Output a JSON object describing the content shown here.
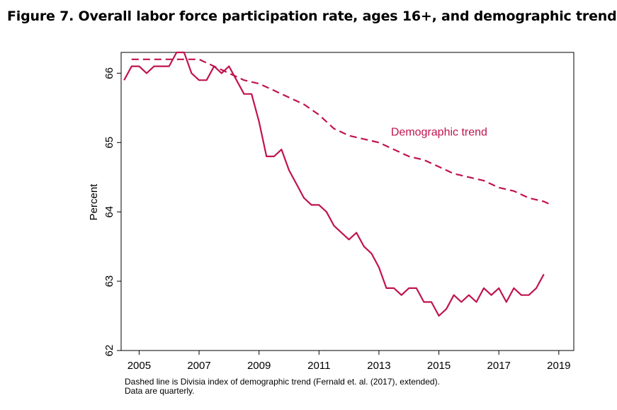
{
  "figure_title": "Figure 7. Overall labor force participation rate, ages 16+, and demographic trend",
  "notes": [
    "Dashed line is Divisia index of demographic trend (Fernald et. al. (2017), extended).",
    "Data are quarterly."
  ],
  "colors": {
    "series": "#c0134f",
    "axis": "#000000"
  },
  "chart_data": {
    "type": "line",
    "title": "Figure 7. Overall labor force participation rate, ages 16+, and demographic trend",
    "xlabel": "",
    "ylabel": "Percent",
    "xlim": [
      2004.4,
      2019.5
    ],
    "ylim": [
      62,
      66.3
    ],
    "xticks": [
      2005,
      2007,
      2009,
      2011,
      2013,
      2015,
      2017,
      2019
    ],
    "yticks": [
      62,
      63,
      64,
      65,
      66
    ],
    "annotation": {
      "text": "Demographic trend",
      "x": 2013.4,
      "y": 65.05
    },
    "series": [
      {
        "name": "Labor force participation rate",
        "style": "solid",
        "x": [
          2004.5,
          2004.75,
          2005,
          2005.25,
          2005.5,
          2005.75,
          2006,
          2006.25,
          2006.5,
          2006.75,
          2007,
          2007.25,
          2007.5,
          2007.75,
          2008,
          2008.25,
          2008.5,
          2008.75,
          2009,
          2009.25,
          2009.5,
          2009.75,
          2010,
          2010.25,
          2010.5,
          2010.75,
          2011,
          2011.25,
          2011.5,
          2011.75,
          2012,
          2012.25,
          2012.5,
          2012.75,
          2013,
          2013.25,
          2013.5,
          2013.75,
          2014,
          2014.25,
          2014.5,
          2014.75,
          2015,
          2015.25,
          2015.5,
          2015.75,
          2016,
          2016.25,
          2016.5,
          2016.75,
          2017,
          2017.25,
          2017.5,
          2017.75,
          2018,
          2018.25,
          2018.5
        ],
        "values": [
          65.9,
          66.1,
          66.1,
          66.0,
          66.1,
          66.1,
          66.1,
          66.3,
          66.3,
          66.0,
          65.9,
          65.9,
          66.1,
          66.0,
          66.1,
          65.9,
          65.7,
          65.7,
          65.3,
          64.8,
          64.8,
          64.9,
          64.6,
          64.4,
          64.2,
          64.1,
          64.1,
          64.0,
          63.8,
          63.7,
          63.6,
          63.7,
          63.5,
          63.4,
          63.2,
          62.9,
          62.9,
          62.8,
          62.9,
          62.9,
          62.7,
          62.7,
          62.5,
          62.6,
          62.8,
          62.7,
          62.8,
          62.7,
          62.9,
          62.8,
          62.9,
          62.7,
          62.9,
          62.8,
          62.8,
          62.9,
          63.1
        ]
      },
      {
        "name": "Demographic trend",
        "style": "dashed",
        "x": [
          2004.75,
          2005,
          2005.5,
          2006,
          2006.5,
          2007,
          2007.5,
          2008,
          2008.5,
          2009,
          2009.5,
          2010,
          2010.5,
          2011,
          2011.5,
          2012,
          2012.5,
          2013,
          2013.5,
          2014,
          2014.5,
          2015,
          2015.5,
          2016,
          2016.5,
          2017,
          2017.5,
          2018,
          2018.5,
          2018.75
        ],
        "values": [
          66.2,
          66.2,
          66.2,
          66.2,
          66.2,
          66.2,
          66.1,
          66.0,
          65.9,
          65.85,
          65.75,
          65.65,
          65.55,
          65.4,
          65.2,
          65.1,
          65.05,
          65.0,
          64.9,
          64.8,
          64.75,
          64.65,
          64.55,
          64.5,
          64.45,
          64.35,
          64.3,
          64.2,
          64.15,
          64.1
        ]
      }
    ]
  }
}
